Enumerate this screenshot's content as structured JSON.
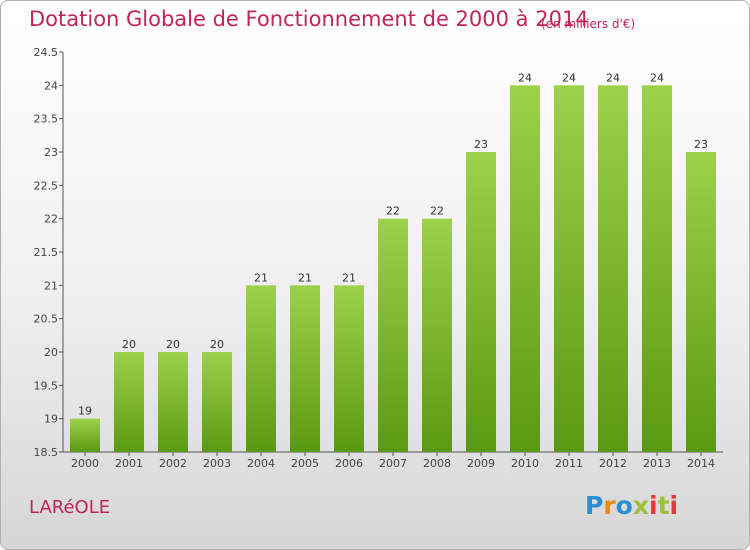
{
  "header": {
    "title": "Dotation Globale de Fonctionnement de 2000 à 2014",
    "subtitle": "(en milliers d'€)"
  },
  "footer": {
    "commune": "LARéOLE",
    "logo": "Proxiti"
  },
  "colors": {
    "title": "#c0245c",
    "bar_top": "#9dd14a",
    "bar_bottom": "#5a9a12",
    "logo_letters": [
      "#2a8fd1",
      "#e88a1a",
      "#2a8fd1",
      "#9cc23a",
      "#e03a3a",
      "#9cc23a",
      "#e03a3a"
    ]
  },
  "chart_data": {
    "type": "bar",
    "categories": [
      "2000",
      "2001",
      "2002",
      "2003",
      "2004",
      "2005",
      "2006",
      "2007",
      "2008",
      "2009",
      "2010",
      "2011",
      "2012",
      "2013",
      "2014"
    ],
    "values": [
      19,
      20,
      20,
      20,
      21,
      21,
      21,
      22,
      22,
      23,
      24,
      24,
      24,
      24,
      23
    ],
    "data_labels": [
      "19",
      "20",
      "20",
      "20",
      "21",
      "21",
      "21",
      "22",
      "22",
      "23",
      "24",
      "24",
      "24",
      "24",
      "23"
    ],
    "title": "Dotation Globale de Fonctionnement de 2000 à 2014",
    "xlabel": "",
    "ylabel": "",
    "ylim": [
      18.5,
      24.5
    ],
    "yticks": [
      18.5,
      19,
      19.5,
      20,
      20.5,
      21,
      21.5,
      22,
      22.5,
      23,
      23.5,
      24,
      24.5
    ],
    "ytick_labels": [
      "18.5",
      "19",
      "19.5",
      "20",
      "20.5",
      "21",
      "21.5",
      "22",
      "22.5",
      "23",
      "23.5",
      "24",
      "24.5"
    ],
    "grid": false,
    "legend": "none"
  }
}
